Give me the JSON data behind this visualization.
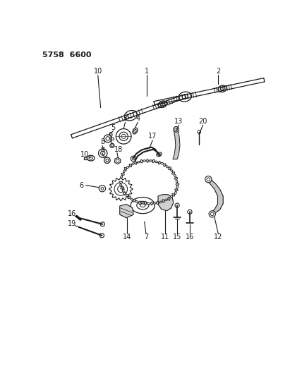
{
  "title": "5758  6600",
  "title_fontsize": 8,
  "bg_color": "#ffffff",
  "line_color": "#1a1a1a",
  "label_fontsize": 7,
  "figsize": [
    4.28,
    5.33
  ],
  "dpi": 100
}
